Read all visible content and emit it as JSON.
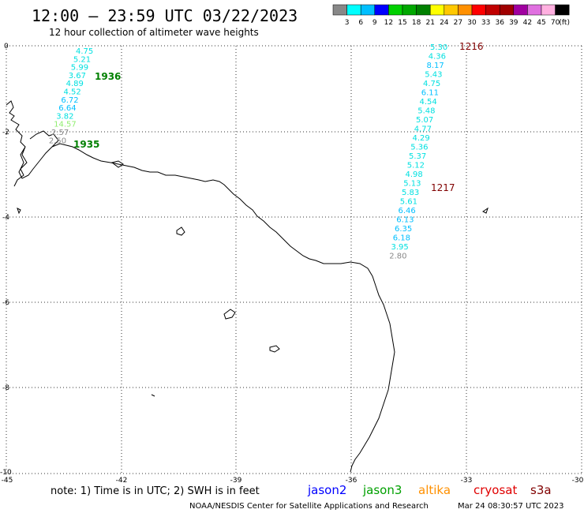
{
  "header": {
    "title": "12:00 – 23:59 UTC 03/22/2023",
    "subtitle": "12 hour collection of altimeter wave heights"
  },
  "legend": {
    "colors": [
      "#888888",
      "#00ffff",
      "#00bfff",
      "#0000ff",
      "#00d000",
      "#00a800",
      "#008000",
      "#ffff00",
      "#ffc800",
      "#ff9000",
      "#ff0000",
      "#c00000",
      "#a00000",
      "#a000a0",
      "#e070e0",
      "#ffb0e0",
      "#000000"
    ],
    "labels": [
      "3",
      "6",
      "9",
      "12",
      "15",
      "18",
      "21",
      "24",
      "27",
      "30",
      "33",
      "36",
      "39",
      "42",
      "45",
      "70",
      "(ft)"
    ]
  },
  "axes": {
    "x_ticks": [
      "-45",
      "-42",
      "-39",
      "-36",
      "-33",
      "-30"
    ],
    "y_ticks": [
      "0",
      "-2",
      "-4",
      "-6",
      "-8",
      "-10"
    ]
  },
  "track_left": {
    "values": [
      {
        "v": "4.75",
        "c": "#00e0e0"
      },
      {
        "v": "5.21",
        "c": "#00e0e0"
      },
      {
        "v": "5.99",
        "c": "#00e0e0"
      },
      {
        "v": "3.67",
        "c": "#00e0e0"
      },
      {
        "v": "4.89",
        "c": "#00e0e0"
      },
      {
        "v": "4.52",
        "c": "#00e0e0"
      },
      {
        "v": "6.72",
        "c": "#00bfff"
      },
      {
        "v": "6.64",
        "c": "#00bfff"
      },
      {
        "v": "3.82",
        "c": "#00e0e0"
      },
      {
        "v": "14.57",
        "c": "#90ee70"
      },
      {
        "v": "2.57",
        "c": "#888888"
      },
      {
        "v": "2.50",
        "c": "#888888"
      }
    ],
    "time_top": "1936",
    "time_bottom": "1935",
    "time_color": "#008000"
  },
  "track_right": {
    "values": [
      {
        "v": "5.30",
        "c": "#00e0e0"
      },
      {
        "v": "4.36",
        "c": "#00e0e0"
      },
      {
        "v": "8.17",
        "c": "#00bfff"
      },
      {
        "v": "5.43",
        "c": "#00e0e0"
      },
      {
        "v": "4.75",
        "c": "#00e0e0"
      },
      {
        "v": "6.11",
        "c": "#00bfff"
      },
      {
        "v": "4.54",
        "c": "#00e0e0"
      },
      {
        "v": "5.48",
        "c": "#00e0e0"
      },
      {
        "v": "5.07",
        "c": "#00e0e0"
      },
      {
        "v": "4.77",
        "c": "#00e0e0"
      },
      {
        "v": "4.29",
        "c": "#00e0e0"
      },
      {
        "v": "5.36",
        "c": "#00e0e0"
      },
      {
        "v": "5.37",
        "c": "#00e0e0"
      },
      {
        "v": "5.12",
        "c": "#00e0e0"
      },
      {
        "v": "4.98",
        "c": "#00e0e0"
      },
      {
        "v": "5.13",
        "c": "#00e0e0"
      },
      {
        "v": "5.83",
        "c": "#00e0e0"
      },
      {
        "v": "5.61",
        "c": "#00e0e0"
      },
      {
        "v": "6.46",
        "c": "#00bfff"
      },
      {
        "v": "6.13",
        "c": "#00bfff"
      },
      {
        "v": "6.35",
        "c": "#00bfff"
      },
      {
        "v": "6.18",
        "c": "#00bfff"
      },
      {
        "v": "3.95",
        "c": "#00e0e0"
      },
      {
        "v": "2.80",
        "c": "#888888"
      }
    ],
    "time_top": "1216",
    "time_bottom": "1217",
    "time_color": "#800000"
  },
  "footer": {
    "note": "note: 1) Time is in UTC; 2) SWH is in feet",
    "satellites": [
      {
        "name": "jason2",
        "color": "#0000ff"
      },
      {
        "name": "jason3",
        "color": "#00a000"
      },
      {
        "name": "altika",
        "color": "#ff9000"
      },
      {
        "name": "cryosat",
        "color": "#e00000"
      },
      {
        "name": "s3a",
        "color": "#800000"
      }
    ],
    "credit": "NOAA/NESDIS Center for Satellite Applications and Research",
    "timestamp": "Mar 24 08:30:57 UTC 2023"
  }
}
